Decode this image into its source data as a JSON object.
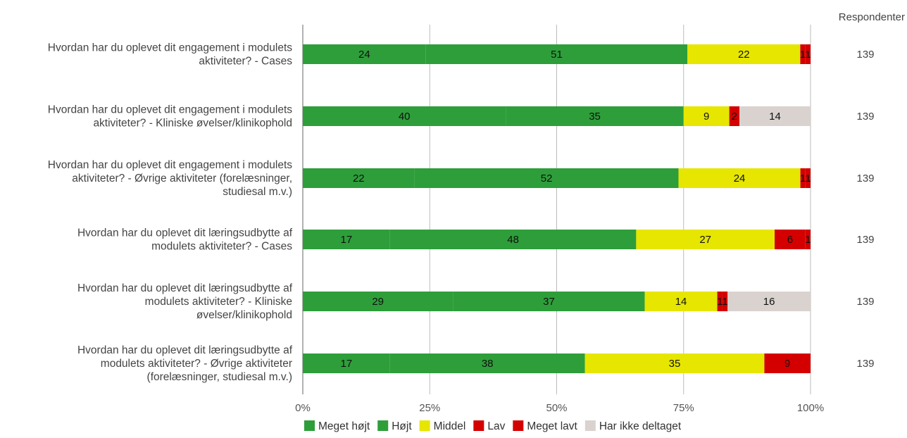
{
  "chart_data": {
    "type": "bar",
    "orientation": "horizontal",
    "stacking": "percent",
    "categories": [
      [
        "Hvordan har du oplevet dit engagement i modulets",
        "aktiviteter? - Cases"
      ],
      [
        "Hvordan har du oplevet dit engagement i modulets",
        "aktiviteter? - Kliniske øvelser/klinikophold"
      ],
      [
        "Hvordan har du oplevet dit engagement i modulets",
        "aktiviteter? - Øvrige aktiviteter (forelæsninger,",
        "studiesal m.v.)"
      ],
      [
        "Hvordan har du oplevet dit læringsudbytte af",
        "modulets aktiviteter? - Cases"
      ],
      [
        "Hvordan har du oplevet dit læringsudbytte af",
        "modulets aktiviteter? - Kliniske",
        "øvelser/klinikophold"
      ],
      [
        "Hvordan har du oplevet dit læringsudbytte af",
        "modulets aktiviteter? - Øvrige aktiviteter",
        "(forelæsninger, studiesal m.v.)"
      ]
    ],
    "series": [
      {
        "name": "Meget højt",
        "color": "#2e9e3a",
        "values": [
          24,
          40,
          22,
          17,
          29,
          17
        ]
      },
      {
        "name": "Højt",
        "color": "#2e9e3a",
        "values": [
          51,
          35,
          52,
          48,
          37,
          38
        ]
      },
      {
        "name": "Middel",
        "color": "#e6e600",
        "values": [
          22,
          9,
          24,
          27,
          14,
          35
        ]
      },
      {
        "name": "Lav",
        "color": "#d40000",
        "values": [
          1,
          2,
          1,
          6,
          1,
          9
        ]
      },
      {
        "name": "Meget lavt",
        "color": "#d40000",
        "values": [
          1,
          0,
          1,
          1,
          1,
          0
        ]
      },
      {
        "name": "Har ikke deltaget",
        "color": "#d9d2cf",
        "values": [
          0,
          14,
          0,
          0,
          16,
          0
        ]
      }
    ],
    "respondents_header": "Respondenter",
    "respondents": [
      139,
      139,
      139,
      139,
      139,
      139
    ],
    "x_ticks": [
      "0%",
      "25%",
      "50%",
      "75%",
      "100%"
    ],
    "xlim": [
      0,
      100
    ],
    "grid": true,
    "legend_position": "bottom"
  }
}
